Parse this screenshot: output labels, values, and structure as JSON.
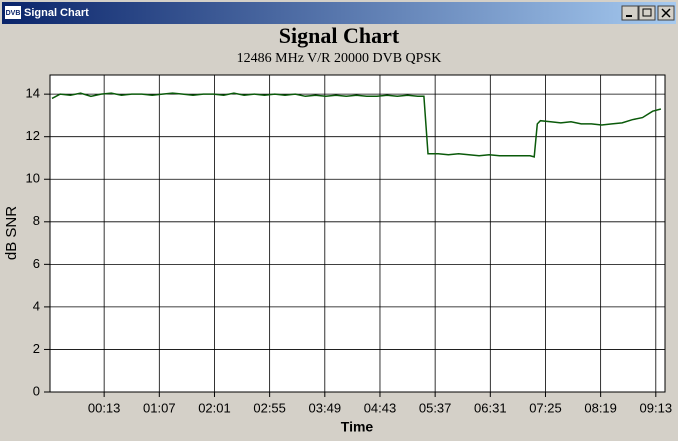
{
  "window": {
    "title": "Signal Chart",
    "icon_label": "DVB"
  },
  "chart_data": {
    "type": "line",
    "title": "Signal Chart",
    "subtitle": "12486 MHz V/R 20000 DVB QPSK",
    "x_label": "Time",
    "y_label": "dB SNR",
    "x": [
      -38,
      -30,
      -20,
      -10,
      0,
      10,
      20,
      30,
      40,
      50,
      60,
      70,
      80,
      90,
      100,
      110,
      120,
      130,
      140,
      150,
      160,
      170,
      180,
      190,
      200,
      210,
      220,
      230,
      240,
      250,
      260,
      270,
      280,
      290,
      300,
      310,
      320,
      326,
      330,
      340,
      350,
      360,
      370,
      380,
      390,
      400,
      410,
      420,
      430,
      434,
      437,
      440,
      450,
      460,
      470,
      480,
      490,
      500,
      510,
      520,
      530,
      540,
      550,
      558
    ],
    "series": [
      {
        "name": "SNR",
        "color": "#0a5a0a",
        "values": [
          13.8,
          14.0,
          13.95,
          14.05,
          13.9,
          14.0,
          14.05,
          13.95,
          14.0,
          14.0,
          13.95,
          14.0,
          14.05,
          14.0,
          13.95,
          14.0,
          14.0,
          13.95,
          14.05,
          13.95,
          14.0,
          13.95,
          14.0,
          13.95,
          14.0,
          13.9,
          13.95,
          13.9,
          13.95,
          13.9,
          13.95,
          13.9,
          13.9,
          13.95,
          13.9,
          13.95,
          13.9,
          13.9,
          11.2,
          11.2,
          11.15,
          11.2,
          11.15,
          11.1,
          11.15,
          11.1,
          11.1,
          11.1,
          11.1,
          11.05,
          12.6,
          12.75,
          12.7,
          12.65,
          12.7,
          12.6,
          12.6,
          12.55,
          12.6,
          12.65,
          12.8,
          12.9,
          13.2,
          13.3
        ]
      }
    ],
    "xlim": [
      -40,
      562
    ],
    "xticks": [
      {
        "value": 13,
        "label": "00:13"
      },
      {
        "value": 67,
        "label": "01:07"
      },
      {
        "value": 121,
        "label": "02:01"
      },
      {
        "value": 175,
        "label": "02:55"
      },
      {
        "value": 229,
        "label": "03:49"
      },
      {
        "value": 283,
        "label": "04:43"
      },
      {
        "value": 337,
        "label": "05:37"
      },
      {
        "value": 391,
        "label": "06:31"
      },
      {
        "value": 445,
        "label": "07:25"
      },
      {
        "value": 499,
        "label": "08:19"
      },
      {
        "value": 553,
        "label": "09:13"
      }
    ],
    "ylim": [
      0,
      14.9
    ],
    "yticks": [
      0,
      2,
      4,
      6,
      8,
      10,
      12,
      14
    ],
    "grid": true
  }
}
